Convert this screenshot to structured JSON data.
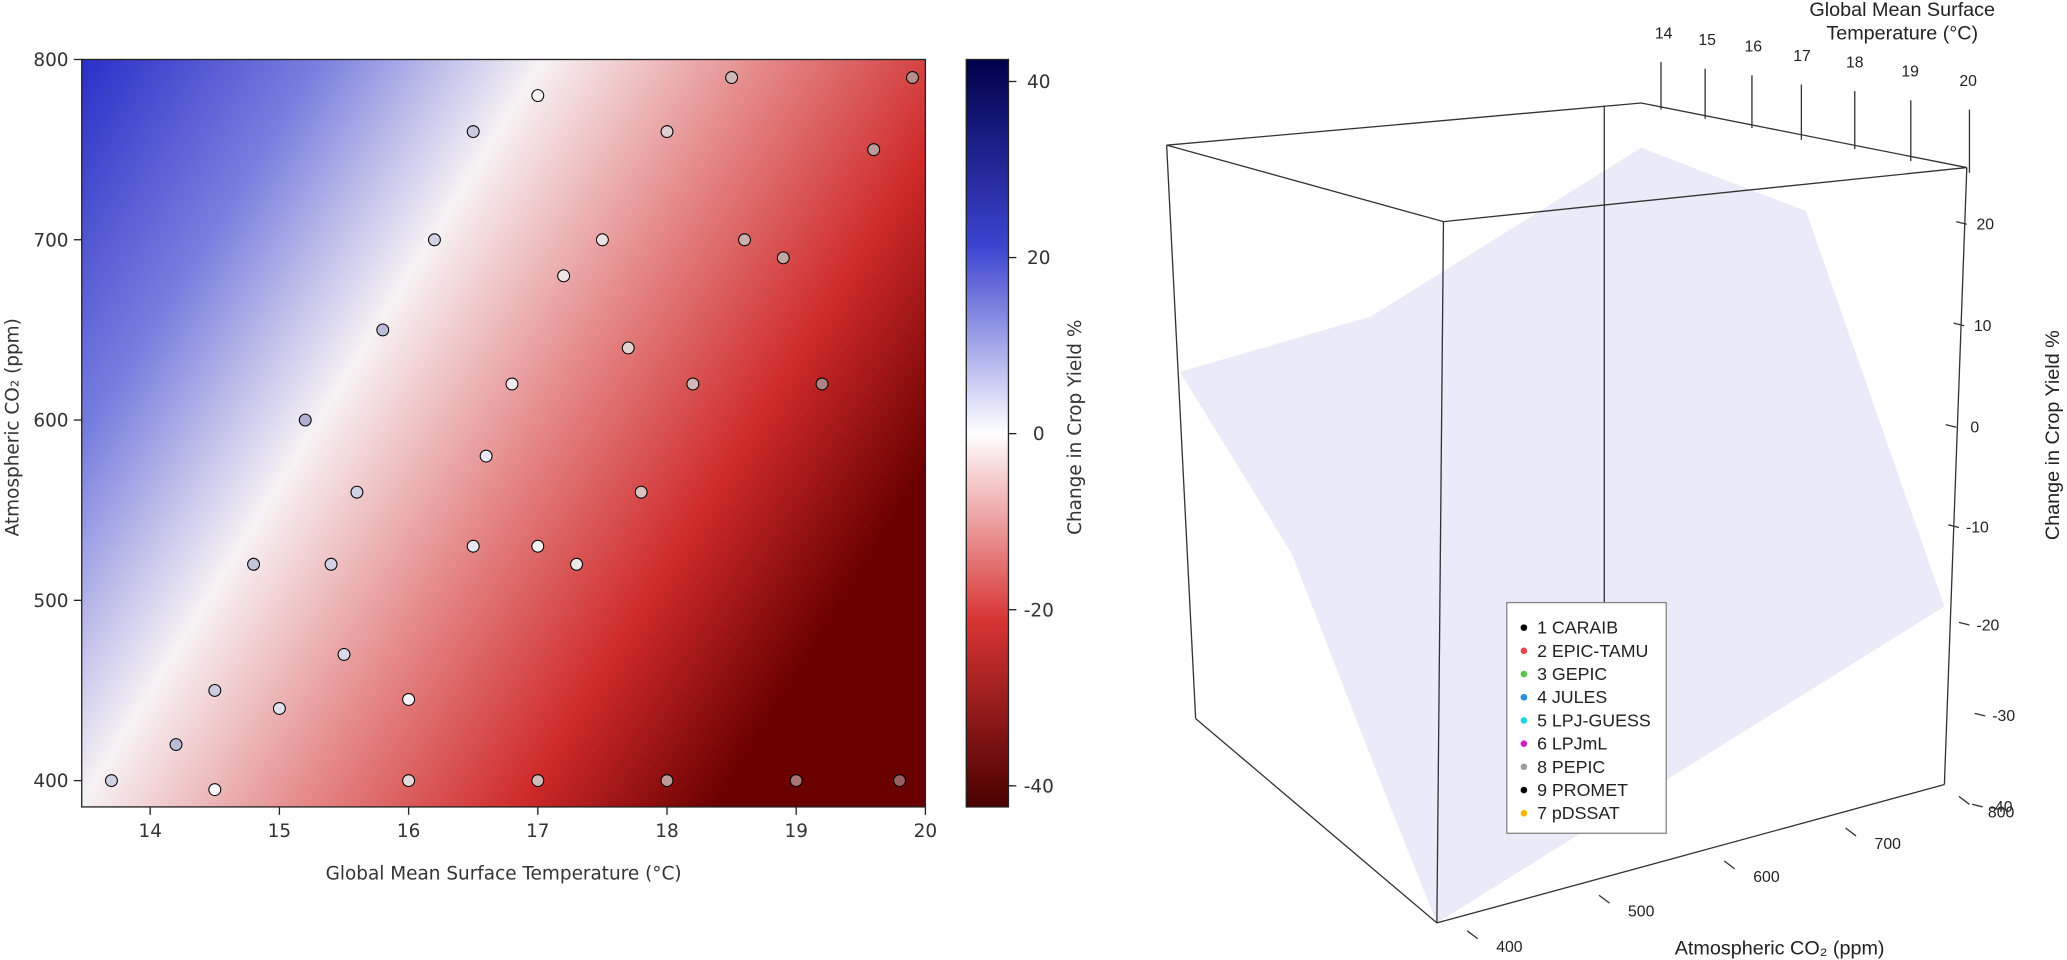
{
  "chart_data": [
    {
      "type": "scatter",
      "xlabel": "Global Mean Surface Temperature (°C)",
      "ylabel": "Atmospheric CO₂ (ppm)",
      "colorbar_label": "Change in Crop Yield %",
      "xlim": [
        13.47,
        20
      ],
      "ylim": [
        385.4,
        800
      ],
      "clim": [
        -42.4,
        42.5
      ],
      "xticks": [
        14,
        15,
        16,
        17,
        18,
        19,
        20
      ],
      "yticks": [
        400,
        500,
        600,
        700,
        800
      ],
      "cticks": [
        40,
        20,
        0,
        -20,
        -40
      ],
      "x": [
        13.7,
        14.2,
        14.5,
        15,
        15.5,
        16,
        16.5,
        17,
        17.3,
        15.2,
        15.8,
        16.2,
        16.5,
        17,
        17.5,
        18,
        18.5,
        18.6,
        18.9,
        19.2,
        19.6,
        19.9,
        14.5,
        16,
        17,
        18,
        19,
        19.8,
        17.8,
        18.2,
        16.8,
        17.2,
        15.6,
        16.6,
        14.8,
        15.4,
        17.7
      ],
      "y": [
        400,
        420,
        450,
        440,
        470,
        445,
        530,
        530,
        520,
        600,
        650,
        700,
        760,
        780,
        700,
        760,
        790,
        700,
        690,
        620,
        750,
        790,
        395,
        400,
        400,
        400,
        400,
        400,
        560,
        620,
        620,
        680,
        560,
        580,
        520,
        520,
        640
      ],
      "values": [
        5,
        8,
        6,
        3,
        4,
        1,
        2,
        -3,
        -5,
        10,
        8,
        5,
        6,
        -2,
        -6,
        -10,
        -14,
        -16,
        -18,
        -24,
        -20,
        -22,
        -1,
        -8,
        -14,
        -20,
        -26,
        -30,
        -12,
        -14,
        -4,
        -5,
        5,
        2,
        7,
        5,
        -9
      ]
    },
    {
      "type": "scatter3d",
      "xlabel": [
        "Global Mean Surface",
        "Temperature (°C)"
      ],
      "ylabel": "Atmospheric CO₂ (ppm)",
      "zlabel": "Change in Crop Yield %",
      "xticks": [
        14,
        15,
        16,
        17,
        18,
        19,
        20
      ],
      "yticks": [
        400,
        500,
        600,
        700,
        800
      ],
      "zticks": [
        20,
        10,
        0,
        -10,
        -20,
        -30,
        -40
      ],
      "series": [
        {
          "name": "1 CARAIB",
          "color": "#000000"
        },
        {
          "name": "2 EPIC-TAMU",
          "color": "#e8474f"
        },
        {
          "name": "3 GEPIC",
          "color": "#5cc24e"
        },
        {
          "name": "4 JULES",
          "color": "#2a8ee0"
        },
        {
          "name": "5 LPJ-GUESS",
          "color": "#22d4e0"
        },
        {
          "name": "6 LPJmL",
          "color": "#d020c0"
        },
        {
          "name": "8 PEPIC",
          "color": "#9e9e9e"
        },
        {
          "name": "9 PROMET",
          "color": "#000000"
        },
        {
          "name": "7 pDSSAT",
          "color": "#f5b800"
        }
      ]
    }
  ]
}
